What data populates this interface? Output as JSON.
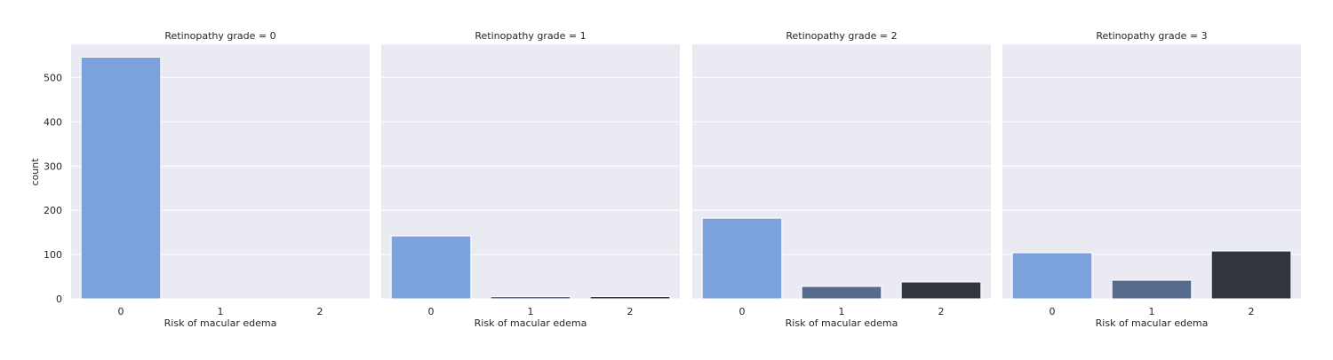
{
  "chart_data": {
    "type": "bar",
    "ylabel": "count",
    "ylim": [
      0,
      575
    ],
    "yticks": [
      0,
      100,
      200,
      300,
      400,
      500
    ],
    "grid": true,
    "colors": [
      "#7ba2da",
      "#566b8d",
      "#30353e"
    ],
    "panels": [
      {
        "title": "Retinopathy grade = 0",
        "xlabel": "Risk of macular edema",
        "categories": [
          "0",
          "1",
          "2"
        ],
        "values": [
          546,
          0,
          0
        ]
      },
      {
        "title": "Retinopathy grade = 1",
        "xlabel": "Risk of macular edema",
        "categories": [
          "0",
          "1",
          "2"
        ],
        "values": [
          142,
          5,
          5
        ]
      },
      {
        "title": "Retinopathy grade = 2",
        "xlabel": "Risk of macular edema",
        "categories": [
          "0",
          "1",
          "2"
        ],
        "values": [
          182,
          28,
          38
        ]
      },
      {
        "title": "Retinopathy grade = 3",
        "xlabel": "Risk of macular edema",
        "categories": [
          "0",
          "1",
          "2"
        ],
        "values": [
          104,
          42,
          108
        ]
      }
    ]
  }
}
